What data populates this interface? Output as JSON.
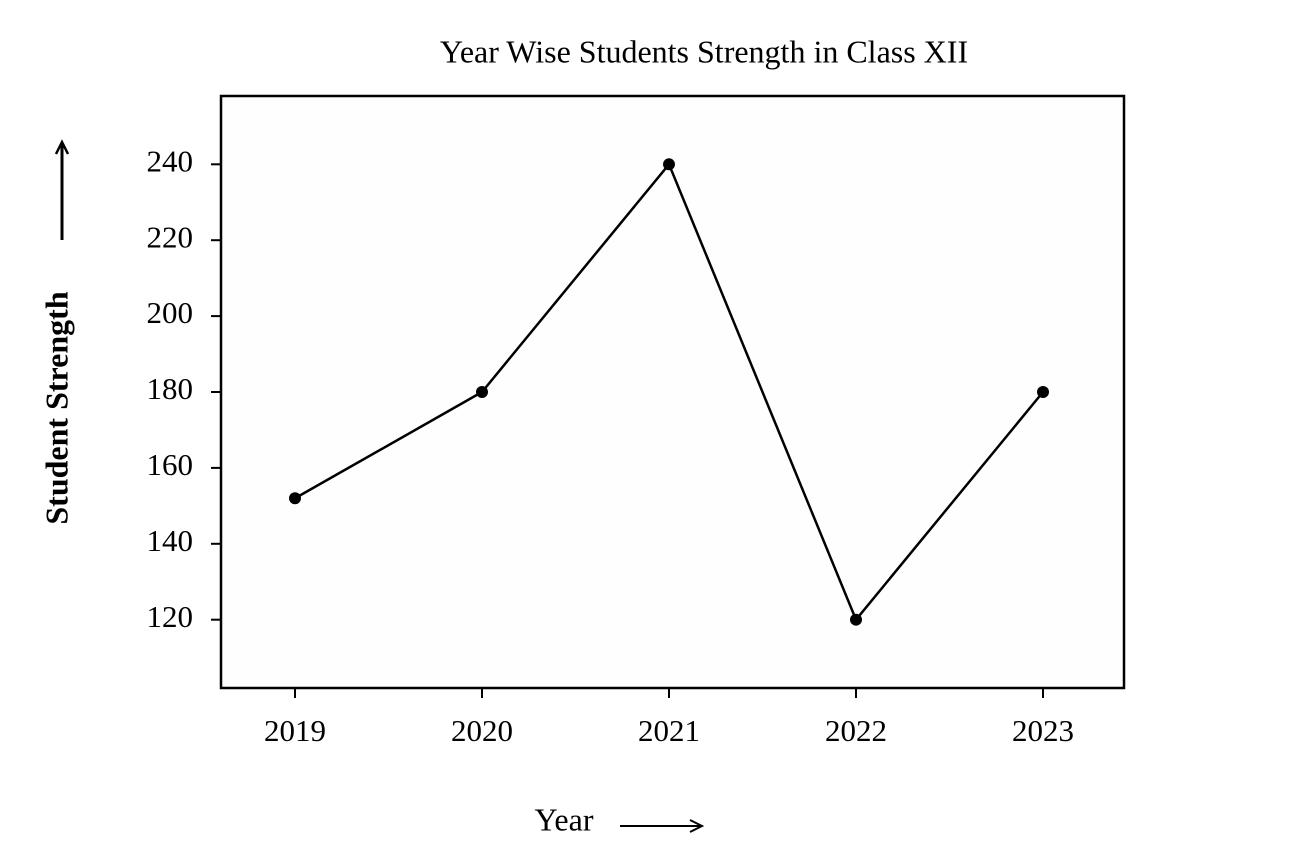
{
  "chart_data": {
    "type": "line",
    "title": "Year Wise Students Strength in Class XII",
    "x_label": "Year",
    "y_label": "Student Strength",
    "categories": [
      "2019",
      "2020",
      "2021",
      "2022",
      "2023"
    ],
    "values": [
      152,
      180,
      240,
      120,
      180
    ],
    "color": "#000000",
    "ylim": [
      102,
      258
    ],
    "yticks": [
      120,
      140,
      160,
      180,
      200,
      220,
      240
    ],
    "grid": false
  }
}
